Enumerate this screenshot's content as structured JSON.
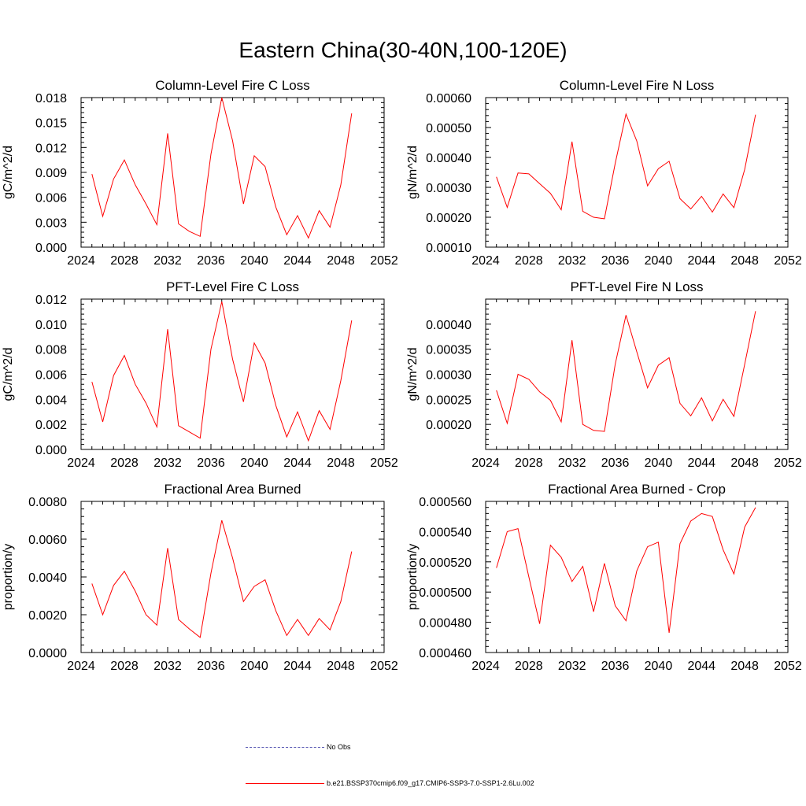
{
  "title": "Eastern China(30-40N,100-120E)",
  "legend": [
    {
      "label": "No Obs",
      "style": "dashed",
      "color": "#5a5ab4"
    },
    {
      "label": "b.e21.BSSP370cmip6.f09_g17.CMIP6-SSP3-7.0-SSP1-2.6Lu.002",
      "style": "solid",
      "color": "#ff0000"
    }
  ],
  "chart_data": [
    {
      "type": "line",
      "title": "Column-Level Fire C Loss",
      "ylabel": "gC/m^2/d",
      "xlim": [
        2024,
        2052
      ],
      "ylim": [
        0,
        0.018
      ],
      "xticks": [
        "2024",
        "2028",
        "2032",
        "2036",
        "2040",
        "2044",
        "2048",
        "2052"
      ],
      "yticks": [
        "0.000",
        "0.003",
        "0.006",
        "0.009",
        "0.012",
        "0.015",
        "0.018"
      ],
      "series": [
        {
          "color": "#ff0000",
          "x": [
            2025,
            2026,
            2027,
            2028,
            2029,
            2030,
            2031,
            2032,
            2033,
            2034,
            2035,
            2036,
            2037,
            2038,
            2039,
            2040,
            2041,
            2042,
            2043,
            2044,
            2045,
            2046,
            2047,
            2048,
            2049
          ],
          "values": [
            0.0088,
            0.0037,
            0.0082,
            0.0105,
            0.0075,
            0.0052,
            0.0027,
            0.0137,
            0.0028,
            0.0019,
            0.0013,
            0.0112,
            0.018,
            0.0128,
            0.0052,
            0.011,
            0.0097,
            0.0048,
            0.0015,
            0.0038,
            0.0011,
            0.0044,
            0.0024,
            0.0075,
            0.0161
          ]
        }
      ]
    },
    {
      "type": "line",
      "title": "Column-Level Fire N Loss",
      "ylabel": "gN/m^2/d",
      "xlim": [
        2024,
        2052
      ],
      "ylim": [
        0.0001,
        0.0006
      ],
      "xticks": [
        "2024",
        "2028",
        "2032",
        "2036",
        "2040",
        "2044",
        "2048",
        "2052"
      ],
      "yticks": [
        "0.00010",
        "0.00020",
        "0.00030",
        "0.00040",
        "0.00050",
        "0.00060"
      ],
      "series": [
        {
          "color": "#ff0000",
          "x": [
            2025,
            2026,
            2027,
            2028,
            2029,
            2030,
            2031,
            2032,
            2033,
            2034,
            2035,
            2036,
            2037,
            2038,
            2039,
            2040,
            2041,
            2042,
            2043,
            2044,
            2045,
            2046,
            2047,
            2048,
            2049
          ],
          "values": [
            0.000335,
            0.000233,
            0.000348,
            0.000345,
            0.000312,
            0.00028,
            0.000225,
            0.000453,
            0.00022,
            0.0002,
            0.000195,
            0.00038,
            0.000545,
            0.000455,
            0.000305,
            0.000362,
            0.000387,
            0.000262,
            0.000228,
            0.00027,
            0.000217,
            0.000278,
            0.000232,
            0.00036,
            0.000543
          ]
        }
      ]
    },
    {
      "type": "line",
      "title": "PFT-Level Fire C Loss",
      "ylabel": "gC/m^2/d",
      "xlim": [
        2024,
        2052
      ],
      "ylim": [
        0,
        0.012
      ],
      "xticks": [
        "2024",
        "2028",
        "2032",
        "2036",
        "2040",
        "2044",
        "2048",
        "2052"
      ],
      "yticks": [
        "0.000",
        "0.002",
        "0.004",
        "0.006",
        "0.008",
        "0.010",
        "0.012"
      ],
      "series": [
        {
          "color": "#ff0000",
          "x": [
            2025,
            2026,
            2027,
            2028,
            2029,
            2030,
            2031,
            2032,
            2033,
            2034,
            2035,
            2036,
            2037,
            2038,
            2039,
            2040,
            2041,
            2042,
            2043,
            2044,
            2045,
            2046,
            2047,
            2048,
            2049
          ],
          "values": [
            0.0054,
            0.0022,
            0.0059,
            0.0075,
            0.0052,
            0.0037,
            0.0018,
            0.0096,
            0.0019,
            0.0014,
            0.0009,
            0.008,
            0.0118,
            0.0072,
            0.0038,
            0.0085,
            0.0069,
            0.0035,
            0.001,
            0.003,
            0.0007,
            0.0031,
            0.0016,
            0.0055,
            0.0103
          ]
        }
      ]
    },
    {
      "type": "line",
      "title": "PFT-Level Fire N Loss",
      "ylabel": "gN/m^2/d",
      "xlim": [
        2024,
        2052
      ],
      "ylim": [
        0.00015,
        0.00045
      ],
      "xticks": [
        "2024",
        "2028",
        "2032",
        "2036",
        "2040",
        "2044",
        "2048",
        "2052"
      ],
      "yticks": [
        "0.00020",
        "0.00025",
        "0.00030",
        "0.00035",
        "0.00040"
      ],
      "series": [
        {
          "color": "#ff0000",
          "x": [
            2025,
            2026,
            2027,
            2028,
            2029,
            2030,
            2031,
            2032,
            2033,
            2034,
            2035,
            2036,
            2037,
            2038,
            2039,
            2040,
            2041,
            2042,
            2043,
            2044,
            2045,
            2046,
            2047,
            2048,
            2049
          ],
          "values": [
            0.000268,
            0.000202,
            0.0003,
            0.00029,
            0.000265,
            0.000248,
            0.000205,
            0.000368,
            0.0002,
            0.000188,
            0.000186,
            0.00032,
            0.000418,
            0.000345,
            0.000273,
            0.000318,
            0.000333,
            0.000242,
            0.000217,
            0.000253,
            0.000207,
            0.00025,
            0.000216,
            0.00032,
            0.000426
          ]
        }
      ]
    },
    {
      "type": "line",
      "title": "Fractional Area Burned",
      "ylabel": "proportion/y",
      "xlim": [
        2024,
        2052
      ],
      "ylim": [
        0,
        0.008
      ],
      "xticks": [
        "2024",
        "2028",
        "2032",
        "2036",
        "2040",
        "2044",
        "2048",
        "2052"
      ],
      "yticks": [
        "0.0000",
        "0.0020",
        "0.0040",
        "0.0060",
        "0.0080"
      ],
      "series": [
        {
          "color": "#ff0000",
          "x": [
            2025,
            2026,
            2027,
            2028,
            2029,
            2030,
            2031,
            2032,
            2033,
            2034,
            2035,
            2036,
            2037,
            2038,
            2039,
            2040,
            2041,
            2042,
            2043,
            2044,
            2045,
            2046,
            2047,
            2048,
            2049
          ],
          "values": [
            0.00365,
            0.002,
            0.00355,
            0.0043,
            0.00325,
            0.002,
            0.00145,
            0.00553,
            0.00175,
            0.00125,
            0.0008,
            0.0042,
            0.007,
            0.005,
            0.0027,
            0.0035,
            0.00385,
            0.0022,
            0.0009,
            0.00175,
            0.0009,
            0.0018,
            0.0012,
            0.0027,
            0.00535
          ]
        }
      ]
    },
    {
      "type": "line",
      "title": "Fractional Area Burned - Crop",
      "ylabel": "proportion/y",
      "xlim": [
        2024,
        2052
      ],
      "ylim": [
        0.00046,
        0.00056
      ],
      "xticks": [
        "2024",
        "2028",
        "2032",
        "2036",
        "2040",
        "2044",
        "2048",
        "2052"
      ],
      "yticks": [
        "0.000460",
        "0.000480",
        "0.000500",
        "0.000520",
        "0.000540",
        "0.000560"
      ],
      "series": [
        {
          "color": "#ff0000",
          "x": [
            2025,
            2026,
            2027,
            2028,
            2029,
            2030,
            2031,
            2032,
            2033,
            2034,
            2035,
            2036,
            2037,
            2038,
            2039,
            2040,
            2041,
            2042,
            2043,
            2044,
            2045,
            2046,
            2047,
            2048,
            2049
          ],
          "values": [
            0.000516,
            0.00054,
            0.000542,
            0.00051,
            0.000479,
            0.000531,
            0.000523,
            0.000507,
            0.000517,
            0.000487,
            0.000519,
            0.000491,
            0.000481,
            0.000514,
            0.00053,
            0.000533,
            0.000473,
            0.000532,
            0.000547,
            0.000552,
            0.00055,
            0.000528,
            0.000512,
            0.000543,
            0.000556
          ]
        }
      ]
    }
  ]
}
